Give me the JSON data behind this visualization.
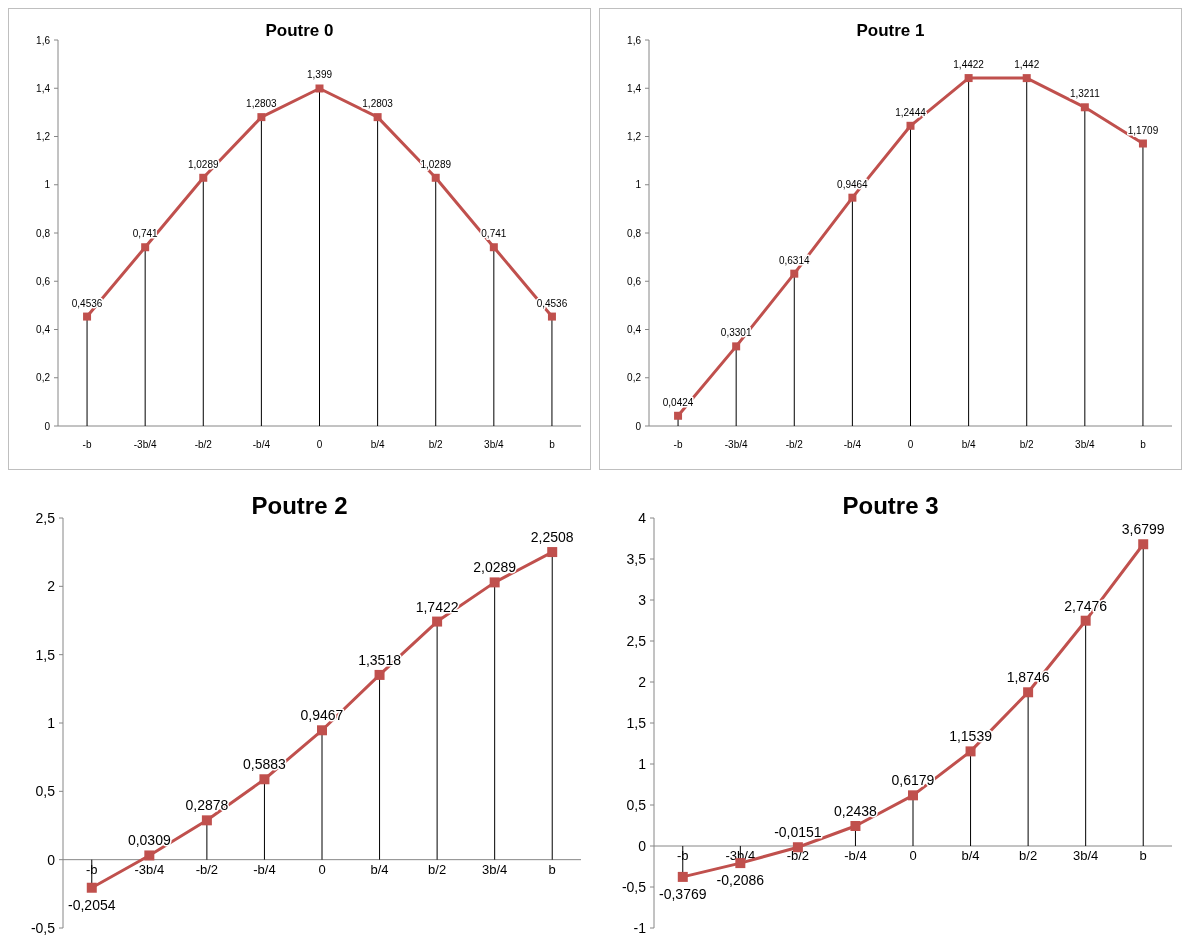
{
  "chart_data": [
    {
      "type": "line",
      "title": "Poutre 0",
      "categories": [
        "-b",
        "-3b/4",
        "-b/2",
        "-b/4",
        "0",
        "b/4",
        "b/2",
        "3b/4",
        "b"
      ],
      "series": [
        {
          "color": "#c0504d",
          "values": [
            0.4536,
            0.741,
            1.0289,
            1.2803,
            1.399,
            1.2803,
            1.0289,
            0.741,
            0.4536
          ],
          "value_labels": [
            "0,4536",
            "0,741",
            "1,0289",
            "1,2803",
            "1,399",
            "1,2803",
            "1,0289",
            "0,741",
            "0,4536"
          ]
        }
      ],
      "ylim": [
        0,
        1.6
      ],
      "yticks": [
        0,
        {
          "value": 0.2,
          "label": "0,2"
        },
        {
          "value": 0.4,
          "label": "0,4"
        },
        {
          "value": 0.6,
          "label": "0,6"
        },
        {
          "value": 0.8,
          "label": "0,8"
        },
        1,
        {
          "value": 1.2,
          "label": "1,2"
        },
        {
          "value": 1.4,
          "label": "1,4"
        },
        {
          "value": 1.6,
          "label": "1,6"
        }
      ],
      "marker": "square",
      "grid": "x"
    },
    {
      "type": "line",
      "title": "Poutre 1",
      "categories": [
        "-b",
        "-3b/4",
        "-b/2",
        "-b/4",
        "0",
        "b/4",
        "b/2",
        "3b/4",
        "b"
      ],
      "series": [
        {
          "color": "#c0504d",
          "values": [
            0.0424,
            0.3301,
            0.6314,
            0.9464,
            1.2444,
            1.4422,
            1.442,
            1.3211,
            1.1709
          ],
          "value_labels": [
            "0,0424",
            "0,3301",
            "0,6314",
            "0,9464",
            "1,2444",
            "1,4422",
            "1,442",
            "1,3211",
            "1,1709"
          ]
        }
      ],
      "ylim": [
        0,
        1.6
      ],
      "yticks": [
        0,
        {
          "value": 0.2,
          "label": "0,2"
        },
        {
          "value": 0.4,
          "label": "0,4"
        },
        {
          "value": 0.6,
          "label": "0,6"
        },
        {
          "value": 0.8,
          "label": "0,8"
        },
        1,
        {
          "value": 1.2,
          "label": "1,2"
        },
        {
          "value": 1.4,
          "label": "1,4"
        },
        {
          "value": 1.6,
          "label": "1,6"
        }
      ],
      "marker": "square",
      "grid": "x"
    },
    {
      "type": "line",
      "title": "Poutre 2",
      "categories": [
        "-b",
        "-3b/4",
        "-b/2",
        "-b/4",
        "0",
        "b/4",
        "b/2",
        "3b/4",
        "b"
      ],
      "series": [
        {
          "color": "#c0504d",
          "values": [
            -0.2054,
            0.0309,
            0.2878,
            0.5883,
            0.9467,
            1.3518,
            1.7422,
            2.0289,
            2.2508
          ],
          "value_labels": [
            "-0,2054",
            "0,0309",
            "0,2878",
            "0,5883",
            "0,9467",
            "1,3518",
            "1,7422",
            "2,0289",
            "2,2508"
          ]
        }
      ],
      "ylim": [
        -0.5,
        2.5
      ],
      "yticks": [
        {
          "value": -0.5,
          "label": "-0,5"
        },
        0,
        {
          "value": 0.5,
          "label": "0,5"
        },
        1,
        {
          "value": 1.5,
          "label": "1,5"
        },
        2,
        {
          "value": 2.5,
          "label": "2,5"
        }
      ],
      "marker": "square",
      "grid": "x"
    },
    {
      "type": "line",
      "title": "Poutre 3",
      "categories": [
        "-b",
        "-3b/4",
        "-b/2",
        "-b/4",
        "0",
        "b/4",
        "b/2",
        "3b/4",
        "b"
      ],
      "series": [
        {
          "color": "#c0504d",
          "values": [
            -0.3769,
            -0.2086,
            -0.0151,
            0.2438,
            0.6179,
            1.1539,
            1.8746,
            2.7476,
            3.6799
          ],
          "value_labels": [
            "-0,3769",
            "-0,2086",
            "-0,0151",
            "0,2438",
            "0,6179",
            "1,1539",
            "1,8746",
            "2,7476",
            "3,6799"
          ]
        }
      ],
      "ylim": [
        -1,
        4
      ],
      "yticks": [
        -1,
        {
          "value": -0.5,
          "label": "-0,5"
        },
        0,
        {
          "value": 0.5,
          "label": "0,5"
        },
        1,
        {
          "value": 1.5,
          "label": "1,5"
        },
        2,
        {
          "value": 2.5,
          "label": "2,5"
        },
        3,
        {
          "value": 3.5,
          "label": "3,5"
        },
        4
      ],
      "marker": "square",
      "grid": "x"
    }
  ]
}
